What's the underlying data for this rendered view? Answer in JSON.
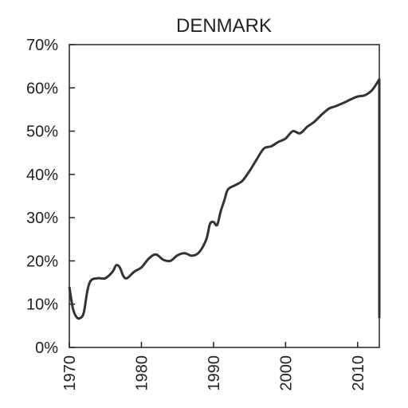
{
  "chart_data": {
    "type": "line",
    "title": "DENMARK",
    "xlabel": "",
    "ylabel": "",
    "xlim": [
      1970,
      2013
    ],
    "ylim": [
      0,
      70
    ],
    "x_ticks": [
      1970,
      1980,
      1990,
      2000,
      2010
    ],
    "x_tick_labels": [
      "1970",
      "1980",
      "1990",
      "2000",
      "2010"
    ],
    "y_ticks": [
      0,
      10,
      20,
      30,
      40,
      50,
      60,
      70
    ],
    "y_tick_labels": [
      "0%",
      "10%",
      "20%",
      "30%",
      "40%",
      "50%",
      "60%",
      "70%"
    ],
    "grid": false,
    "legend": "none",
    "line_color": "#333333",
    "series": [
      {
        "x": [
          1970,
          1970.5,
          1971,
          1971.5,
          1972,
          1972.5,
          1973,
          1974,
          1975,
          1976,
          1976.5,
          1977,
          1977.5,
          1978,
          1979,
          1980,
          1981,
          1982,
          1983,
          1984,
          1985,
          1986,
          1987,
          1988,
          1989,
          1989.5,
          1990,
          1990.5,
          1991,
          1991.5,
          1992,
          1993,
          1994,
          1995,
          1996,
          1997,
          1998,
          1999,
          2000,
          2001,
          2002,
          2003,
          2004,
          2005,
          2006,
          2007,
          2008,
          2009,
          2010,
          2011,
          2012,
          2013
        ],
        "values": [
          14,
          9,
          7,
          6.8,
          8,
          13,
          15.5,
          16,
          16,
          17.5,
          19,
          18.5,
          16.5,
          16,
          17.5,
          18.5,
          20.5,
          21.5,
          20.3,
          20,
          21.3,
          21.8,
          21.2,
          22,
          25,
          28.5,
          29,
          28.3,
          31.5,
          34,
          36.5,
          37.5,
          38.5,
          40.8,
          43.5,
          46,
          46.5,
          47.5,
          48.3,
          50,
          49.5,
          51,
          52.2,
          53.8,
          55.2,
          55.8,
          56.5,
          57.3,
          58,
          58.3,
          59.5,
          62
        ]
      }
    ],
    "right_edge_drop_to": 6.8
  }
}
